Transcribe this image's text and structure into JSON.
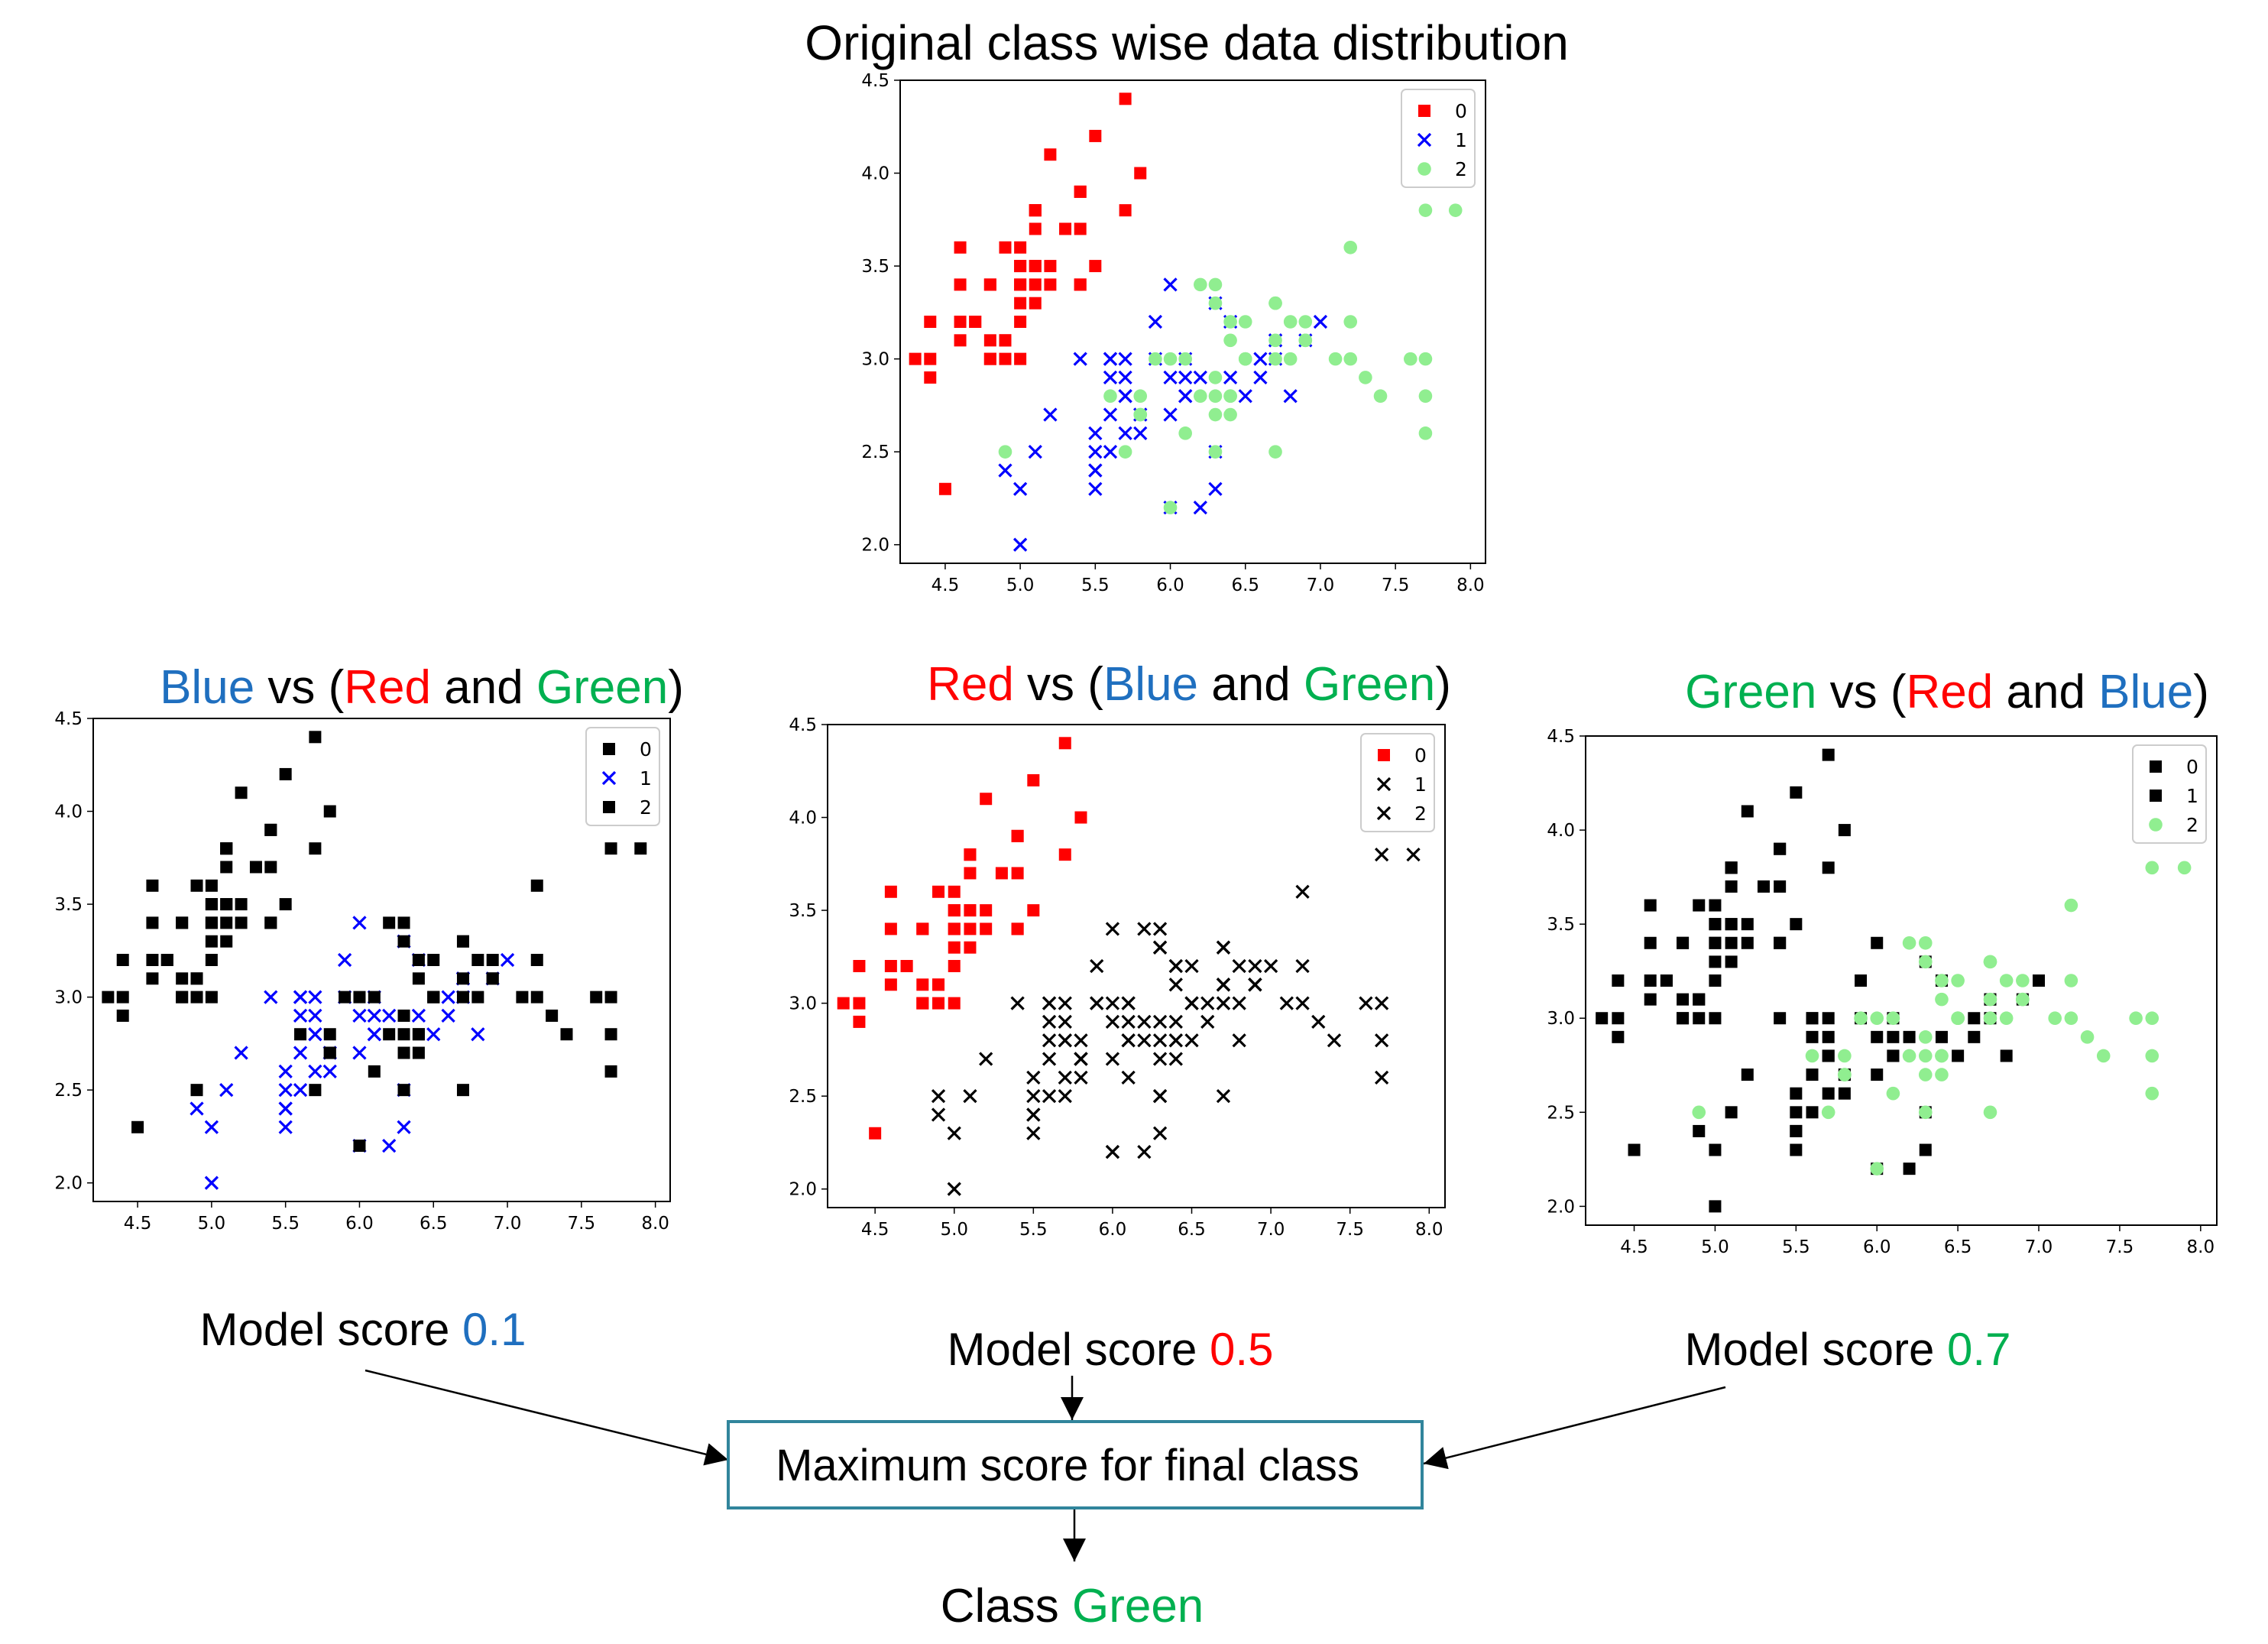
{
  "title_main": "Original class wise data distribution",
  "colors": {
    "red": "#ff0000",
    "blue": "#0000ff",
    "green": "#90ee90",
    "black": "#000000",
    "title_blue": "#1f6fbf",
    "title_red": "#ff0000",
    "title_green": "#00b050",
    "box_border": "#31859c"
  },
  "panels": [
    {
      "title_parts": [
        {
          "text": "Blue",
          "color": "title_blue"
        },
        {
          "text": " vs (",
          "color": "black"
        },
        {
          "text": "Red",
          "color": "title_red"
        },
        {
          "text": " and ",
          "color": "black"
        },
        {
          "text": "Green",
          "color": "title_green"
        },
        {
          "text": ")",
          "color": "black"
        }
      ],
      "score_label": "Model score ",
      "score_value": "0.1",
      "score_color": "title_blue"
    },
    {
      "title_parts": [
        {
          "text": "Red",
          "color": "title_red"
        },
        {
          "text": " vs (",
          "color": "black"
        },
        {
          "text": "Blue",
          "color": "title_blue"
        },
        {
          "text": " and ",
          "color": "black"
        },
        {
          "text": "Green",
          "color": "title_green"
        },
        {
          "text": ")",
          "color": "black"
        }
      ],
      "score_label": "Model score ",
      "score_value": "0.5",
      "score_color": "title_red"
    },
    {
      "title_parts": [
        {
          "text": "Green",
          "color": "title_green"
        },
        {
          "text": " vs (",
          "color": "black"
        },
        {
          "text": "Red",
          "color": "title_red"
        },
        {
          "text": " and ",
          "color": "black"
        },
        {
          "text": "Blue",
          "color": "title_blue"
        },
        {
          "text": ")",
          "color": "black"
        }
      ],
      "score_label": "Model score ",
      "score_value": "0.7",
      "score_color": "title_green"
    }
  ],
  "final_box": "Maximum score for final class",
  "result_label": "Class ",
  "result_value": "Green",
  "chart_data": [
    {
      "type": "scatter",
      "name": "original",
      "x_ticks": [
        "4.5",
        "5.0",
        "5.5",
        "6.0",
        "6.5",
        "7.0",
        "7.5",
        "8.0"
      ],
      "y_ticks": [
        "2.0",
        "2.5",
        "3.0",
        "3.5",
        "4.0",
        "4.5"
      ],
      "xlim": [
        4.2,
        8.1
      ],
      "ylim": [
        1.9,
        4.5
      ],
      "legend": [
        {
          "label": "0",
          "marker": "square",
          "color": "red"
        },
        {
          "label": "1",
          "marker": "x",
          "color": "blue"
        },
        {
          "label": "2",
          "marker": "circle",
          "color": "green"
        }
      ],
      "legend_position": "top-right"
    },
    {
      "type": "scatter",
      "name": "blue-vs-rest",
      "x_ticks": [
        "4.5",
        "5.0",
        "5.5",
        "6.0",
        "6.5",
        "7.0",
        "7.5",
        "8.0"
      ],
      "y_ticks": [
        "2.0",
        "2.5",
        "3.0",
        "3.5",
        "4.0",
        "4.5"
      ],
      "xlim": [
        4.2,
        8.1
      ],
      "ylim": [
        1.9,
        4.5
      ],
      "legend": [
        {
          "label": "0",
          "marker": "square",
          "color": "black"
        },
        {
          "label": "1",
          "marker": "x",
          "color": "blue"
        },
        {
          "label": "2",
          "marker": "square",
          "color": "black"
        }
      ],
      "legend_position": "top-right"
    },
    {
      "type": "scatter",
      "name": "red-vs-rest",
      "x_ticks": [
        "4.5",
        "5.0",
        "5.5",
        "6.0",
        "6.5",
        "7.0",
        "7.5",
        "8.0"
      ],
      "y_ticks": [
        "2.0",
        "2.5",
        "3.0",
        "3.5",
        "4.0",
        "4.5"
      ],
      "xlim": [
        4.2,
        8.1
      ],
      "ylim": [
        1.9,
        4.5
      ],
      "legend": [
        {
          "label": "0",
          "marker": "square",
          "color": "red"
        },
        {
          "label": "1",
          "marker": "x",
          "color": "black"
        },
        {
          "label": "2",
          "marker": "x",
          "color": "black"
        }
      ],
      "legend_position": "top-right"
    },
    {
      "type": "scatter",
      "name": "green-vs-rest",
      "x_ticks": [
        "4.5",
        "5.0",
        "5.5",
        "6.0",
        "6.5",
        "7.0",
        "7.5",
        "8.0"
      ],
      "y_ticks": [
        "2.0",
        "2.5",
        "3.0",
        "3.5",
        "4.0",
        "4.5"
      ],
      "xlim": [
        4.2,
        8.1
      ],
      "ylim": [
        1.9,
        4.5
      ],
      "legend": [
        {
          "label": "0",
          "marker": "square",
          "color": "black"
        },
        {
          "label": "1",
          "marker": "square",
          "color": "black"
        },
        {
          "label": "2",
          "marker": "circle",
          "color": "green"
        }
      ],
      "legend_position": "top-right"
    }
  ],
  "points": {
    "class0": [
      [
        5.1,
        3.5
      ],
      [
        4.9,
        3.0
      ],
      [
        4.7,
        3.2
      ],
      [
        4.6,
        3.1
      ],
      [
        5.0,
        3.6
      ],
      [
        5.4,
        3.9
      ],
      [
        4.6,
        3.4
      ],
      [
        5.0,
        3.4
      ],
      [
        4.4,
        2.9
      ],
      [
        4.9,
        3.1
      ],
      [
        5.4,
        3.7
      ],
      [
        4.8,
        3.4
      ],
      [
        4.8,
        3.0
      ],
      [
        4.3,
        3.0
      ],
      [
        5.8,
        4.0
      ],
      [
        5.7,
        4.4
      ],
      [
        5.4,
        3.9
      ],
      [
        5.1,
        3.5
      ],
      [
        5.7,
        3.8
      ],
      [
        5.1,
        3.8
      ],
      [
        5.4,
        3.4
      ],
      [
        5.1,
        3.7
      ],
      [
        4.6,
        3.6
      ],
      [
        5.1,
        3.3
      ],
      [
        4.8,
        3.4
      ],
      [
        5.0,
        3.0
      ],
      [
        5.0,
        3.4
      ],
      [
        5.2,
        3.5
      ],
      [
        5.2,
        3.4
      ],
      [
        4.7,
        3.2
      ],
      [
        4.8,
        3.1
      ],
      [
        5.4,
        3.4
      ],
      [
        5.2,
        4.1
      ],
      [
        5.5,
        4.2
      ],
      [
        4.9,
        3.1
      ],
      [
        5.0,
        3.2
      ],
      [
        5.5,
        3.5
      ],
      [
        4.9,
        3.6
      ],
      [
        4.4,
        3.0
      ],
      [
        5.1,
        3.4
      ],
      [
        5.0,
        3.5
      ],
      [
        4.5,
        2.3
      ],
      [
        4.4,
        3.2
      ],
      [
        5.0,
        3.5
      ],
      [
        5.1,
        3.8
      ],
      [
        4.8,
        3.0
      ],
      [
        5.1,
        3.8
      ],
      [
        4.6,
        3.2
      ],
      [
        5.3,
        3.7
      ],
      [
        5.0,
        3.3
      ]
    ],
    "class1": [
      [
        7.0,
        3.2
      ],
      [
        6.4,
        3.2
      ],
      [
        6.9,
        3.1
      ],
      [
        5.5,
        2.3
      ],
      [
        6.5,
        2.8
      ],
      [
        5.7,
        2.8
      ],
      [
        6.3,
        3.3
      ],
      [
        4.9,
        2.4
      ],
      [
        6.6,
        2.9
      ],
      [
        5.2,
        2.7
      ],
      [
        5.0,
        2.0
      ],
      [
        5.9,
        3.0
      ],
      [
        6.0,
        2.2
      ],
      [
        6.1,
        2.9
      ],
      [
        5.6,
        2.9
      ],
      [
        6.7,
        3.1
      ],
      [
        5.6,
        3.0
      ],
      [
        5.8,
        2.7
      ],
      [
        6.2,
        2.2
      ],
      [
        5.6,
        2.5
      ],
      [
        5.9,
        3.2
      ],
      [
        6.1,
        2.8
      ],
      [
        6.3,
        2.5
      ],
      [
        6.1,
        2.8
      ],
      [
        6.4,
        2.9
      ],
      [
        6.6,
        3.0
      ],
      [
        6.8,
        2.8
      ],
      [
        6.7,
        3.0
      ],
      [
        6.0,
        2.9
      ],
      [
        5.7,
        2.6
      ],
      [
        5.5,
        2.4
      ],
      [
        5.5,
        2.4
      ],
      [
        5.8,
        2.7
      ],
      [
        6.0,
        2.7
      ],
      [
        5.4,
        3.0
      ],
      [
        6.0,
        3.4
      ],
      [
        6.7,
        3.1
      ],
      [
        6.3,
        2.3
      ],
      [
        5.6,
        3.0
      ],
      [
        5.5,
        2.5
      ],
      [
        5.5,
        2.6
      ],
      [
        6.1,
        3.0
      ],
      [
        5.8,
        2.6
      ],
      [
        5.0,
        2.3
      ],
      [
        5.6,
        2.7
      ],
      [
        5.7,
        3.0
      ],
      [
        5.7,
        2.9
      ],
      [
        6.2,
        2.9
      ],
      [
        5.1,
        2.5
      ],
      [
        5.7,
        2.8
      ]
    ],
    "class2": [
      [
        6.3,
        3.3
      ],
      [
        5.8,
        2.7
      ],
      [
        7.1,
        3.0
      ],
      [
        6.3,
        2.9
      ],
      [
        6.5,
        3.0
      ],
      [
        7.6,
        3.0
      ],
      [
        4.9,
        2.5
      ],
      [
        7.3,
        2.9
      ],
      [
        6.7,
        2.5
      ],
      [
        7.2,
        3.6
      ],
      [
        6.5,
        3.2
      ],
      [
        6.4,
        2.7
      ],
      [
        6.8,
        3.0
      ],
      [
        5.7,
        2.5
      ],
      [
        5.8,
        2.8
      ],
      [
        6.4,
        3.2
      ],
      [
        6.5,
        3.0
      ],
      [
        7.7,
        3.8
      ],
      [
        7.7,
        2.6
      ],
      [
        6.0,
        2.2
      ],
      [
        6.9,
        3.2
      ],
      [
        5.6,
        2.8
      ],
      [
        7.7,
        2.8
      ],
      [
        6.3,
        2.7
      ],
      [
        6.7,
        3.3
      ],
      [
        7.2,
        3.2
      ],
      [
        6.2,
        2.8
      ],
      [
        6.1,
        3.0
      ],
      [
        6.4,
        2.8
      ],
      [
        7.2,
        3.0
      ],
      [
        7.4,
        2.8
      ],
      [
        7.9,
        3.8
      ],
      [
        6.4,
        2.8
      ],
      [
        6.3,
        2.8
      ],
      [
        6.1,
        2.6
      ],
      [
        7.7,
        3.0
      ],
      [
        6.3,
        3.4
      ],
      [
        6.4,
        3.1
      ],
      [
        6.0,
        3.0
      ],
      [
        6.9,
        3.1
      ],
      [
        6.7,
        3.1
      ],
      [
        6.9,
        3.1
      ],
      [
        5.8,
        2.7
      ],
      [
        6.8,
        3.2
      ],
      [
        6.7,
        3.3
      ],
      [
        6.7,
        3.0
      ],
      [
        6.3,
        2.5
      ],
      [
        6.5,
        3.0
      ],
      [
        6.2,
        3.4
      ],
      [
        5.9,
        3.0
      ]
    ]
  }
}
